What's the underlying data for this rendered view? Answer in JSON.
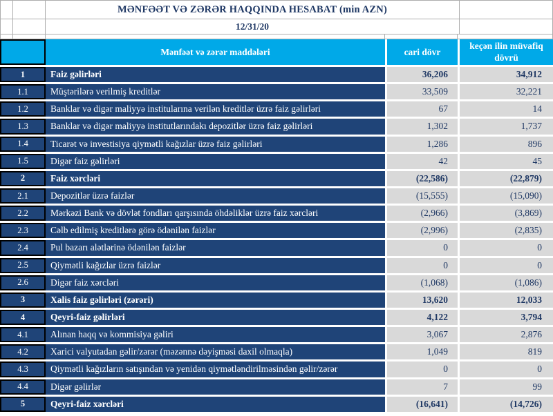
{
  "report": {
    "title": "MƏNFƏƏT VƏ ZƏRƏR HAQQINDA HESABAT (min AZN)",
    "date": "12/31/20"
  },
  "table": {
    "columns": {
      "items": "Mənfəət və zərər maddələri",
      "current": "cari dövr",
      "previous": "keçən ilin müvafiq dövrü"
    },
    "rows": [
      {
        "num": "1",
        "label": "Faiz  gəlirləri",
        "current": "36,206",
        "previous": "34,912",
        "bold": true
      },
      {
        "num": "1.1",
        "label": "Müştərilərə verilmiş kreditlər",
        "current": "33,509",
        "previous": "32,221",
        "bold": false
      },
      {
        "num": "1.2",
        "label": "Banklar və digər maliyyə institularına verilən kreditlər üzrə faiz gəlirləri",
        "current": "67",
        "previous": "14",
        "bold": false
      },
      {
        "num": "1.3",
        "label": "Banklar və digər maliyyə institutlarındakı depozitlər üzrə faiz gəlirləri",
        "current": "1,302",
        "previous": "1,737",
        "bold": false
      },
      {
        "num": "1.4",
        "label": "Ticarət və investisiya qiymətli kağızlar üzrə faiz gəlirləri",
        "current": "1,286",
        "previous": "896",
        "bold": false
      },
      {
        "num": "1.5",
        "label": "Digər faiz gəlirləri",
        "current": "42",
        "previous": "45",
        "bold": false
      },
      {
        "num": "2",
        "label": "Faiz xərcləri",
        "current": "(22,586)",
        "previous": "(22,879)",
        "bold": true
      },
      {
        "num": "2.1",
        "label": "Depozitlər üzrə faizlər",
        "current": "(15,555)",
        "previous": "(15,090)",
        "bold": false
      },
      {
        "num": "2.2",
        "label": "Mərkəzi Bank və dövlət fondları qarşısında öhdəliklər üzrə faiz xərcləri",
        "current": "(2,966)",
        "previous": "(3,869)",
        "bold": false
      },
      {
        "num": "2.3",
        "label": "Cəlb edilmiş kreditlərə görə ödənilən faizlər",
        "current": "(2,996)",
        "previous": "(2,835)",
        "bold": false
      },
      {
        "num": "2.4",
        "label": "Pul bazarı alətlərinə ödənilən faizlər",
        "current": "0",
        "previous": "0",
        "bold": false
      },
      {
        "num": "2.5",
        "label": "Qiymətli kağızlar üzrə faizlər",
        "current": "0",
        "previous": "0",
        "bold": false
      },
      {
        "num": "2.6",
        "label": "Digər faiz xərcləri",
        "current": "(1,068)",
        "previous": "(1,086)",
        "bold": false
      },
      {
        "num": "3",
        "label": "Xalis faiz gəlirləri (zərəri)",
        "current": "13,620",
        "previous": "12,033",
        "bold": true
      },
      {
        "num": "4",
        "label": "Qeyri-faiz gəlirləri",
        "current": "4,122",
        "previous": "3,794",
        "bold": true
      },
      {
        "num": "4.1",
        "label": "Alınan haqq və kommisiya gəliri",
        "current": "3,067",
        "previous": "2,876",
        "bold": false
      },
      {
        "num": "4.2",
        "label": "Xarici valyutadan gəlir/zərər (məzənnə dəyişməsi daxil olmaqla)",
        "current": "1,049",
        "previous": "819",
        "bold": false
      },
      {
        "num": "4.3",
        "label": "Qiymətli kağızların satışından və yenidən qiymətləndirilməsindən gəlir/zərər",
        "current": "0",
        "previous": "0",
        "bold": false
      },
      {
        "num": "4.4",
        "label": "Digər gəlirlər",
        "current": "7",
        "previous": "99",
        "bold": false
      },
      {
        "num": "5",
        "label": "Qeyri-faiz xərcləri",
        "current": "(16,641)",
        "previous": "(14,726)",
        "bold": true
      }
    ]
  },
  "colors": {
    "header_cyan": "#00a9e8",
    "row_navy": "#1f4478",
    "value_cell_gray": "#d9d9d9",
    "value_text_navy": "#1f3864",
    "border_black": "#000000",
    "gridline_gray": "#adadad"
  }
}
